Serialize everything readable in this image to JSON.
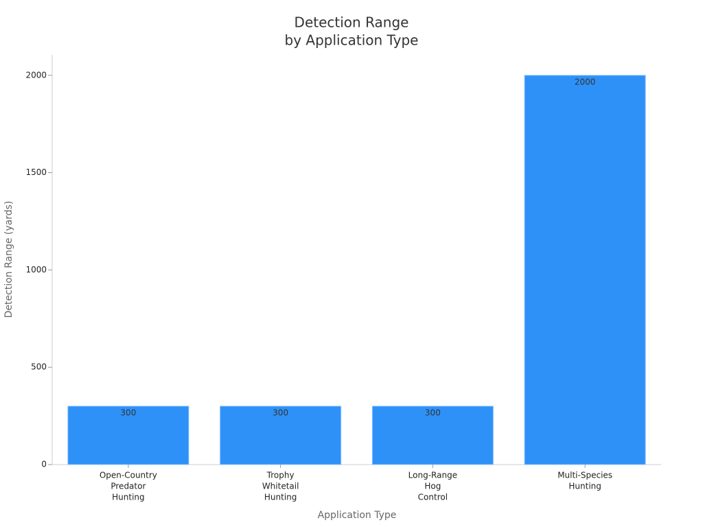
{
  "chart_data": {
    "type": "bar",
    "title": [
      "Detection Range",
      "by Application Type"
    ],
    "x_label": "Application Type",
    "y_label": "Detection Range (yards)",
    "categories": [
      [
        "Open-Country",
        "Predator",
        "Hunting"
      ],
      [
        "Trophy",
        "Whitetail",
        "Hunting"
      ],
      [
        "Long-Range",
        "Hog",
        "Control"
      ],
      [
        "Multi-Species",
        "Hunting"
      ]
    ],
    "values": [
      300,
      300,
      300,
      2000
    ],
    "color": "#2e91f8",
    "ylim": [
      0,
      2105
    ],
    "yticks": [
      0,
      500,
      1000,
      1500,
      2000
    ],
    "grid": false
  }
}
